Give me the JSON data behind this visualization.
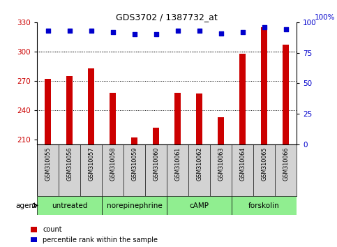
{
  "title": "GDS3702 / 1387732_at",
  "samples": [
    "GSM310055",
    "GSM310056",
    "GSM310057",
    "GSM310058",
    "GSM310059",
    "GSM310060",
    "GSM310061",
    "GSM310062",
    "GSM310063",
    "GSM310064",
    "GSM310065",
    "GSM310066"
  ],
  "counts": [
    272,
    275,
    283,
    258,
    212,
    222,
    258,
    257,
    233,
    298,
    325,
    307
  ],
  "percentiles": [
    93,
    93,
    93,
    92,
    90,
    90,
    93,
    93,
    91,
    92,
    96,
    94
  ],
  "ylim_left": [
    205,
    330
  ],
  "ylim_right": [
    0,
    100
  ],
  "yticks_left": [
    210,
    240,
    270,
    300,
    330
  ],
  "yticks_right": [
    0,
    25,
    50,
    75,
    100
  ],
  "bar_color": "#cc0000",
  "dot_color": "#0000cc",
  "grid_color": "#000000",
  "agents": [
    {
      "label": "untreated",
      "start": 0,
      "end": 3
    },
    {
      "label": "norepinephrine",
      "start": 3,
      "end": 6
    },
    {
      "label": "cAMP",
      "start": 6,
      "end": 9
    },
    {
      "label": "forskolin",
      "start": 9,
      "end": 12
    }
  ],
  "agent_color": "#90ee90",
  "sample_bg_color": "#d3d3d3",
  "left_label_color": "#cc0000",
  "right_label_color": "#0000cc",
  "legend_items": [
    {
      "label": "count",
      "color": "#cc0000"
    },
    {
      "label": "percentile rank within the sample",
      "color": "#0000cc"
    }
  ]
}
